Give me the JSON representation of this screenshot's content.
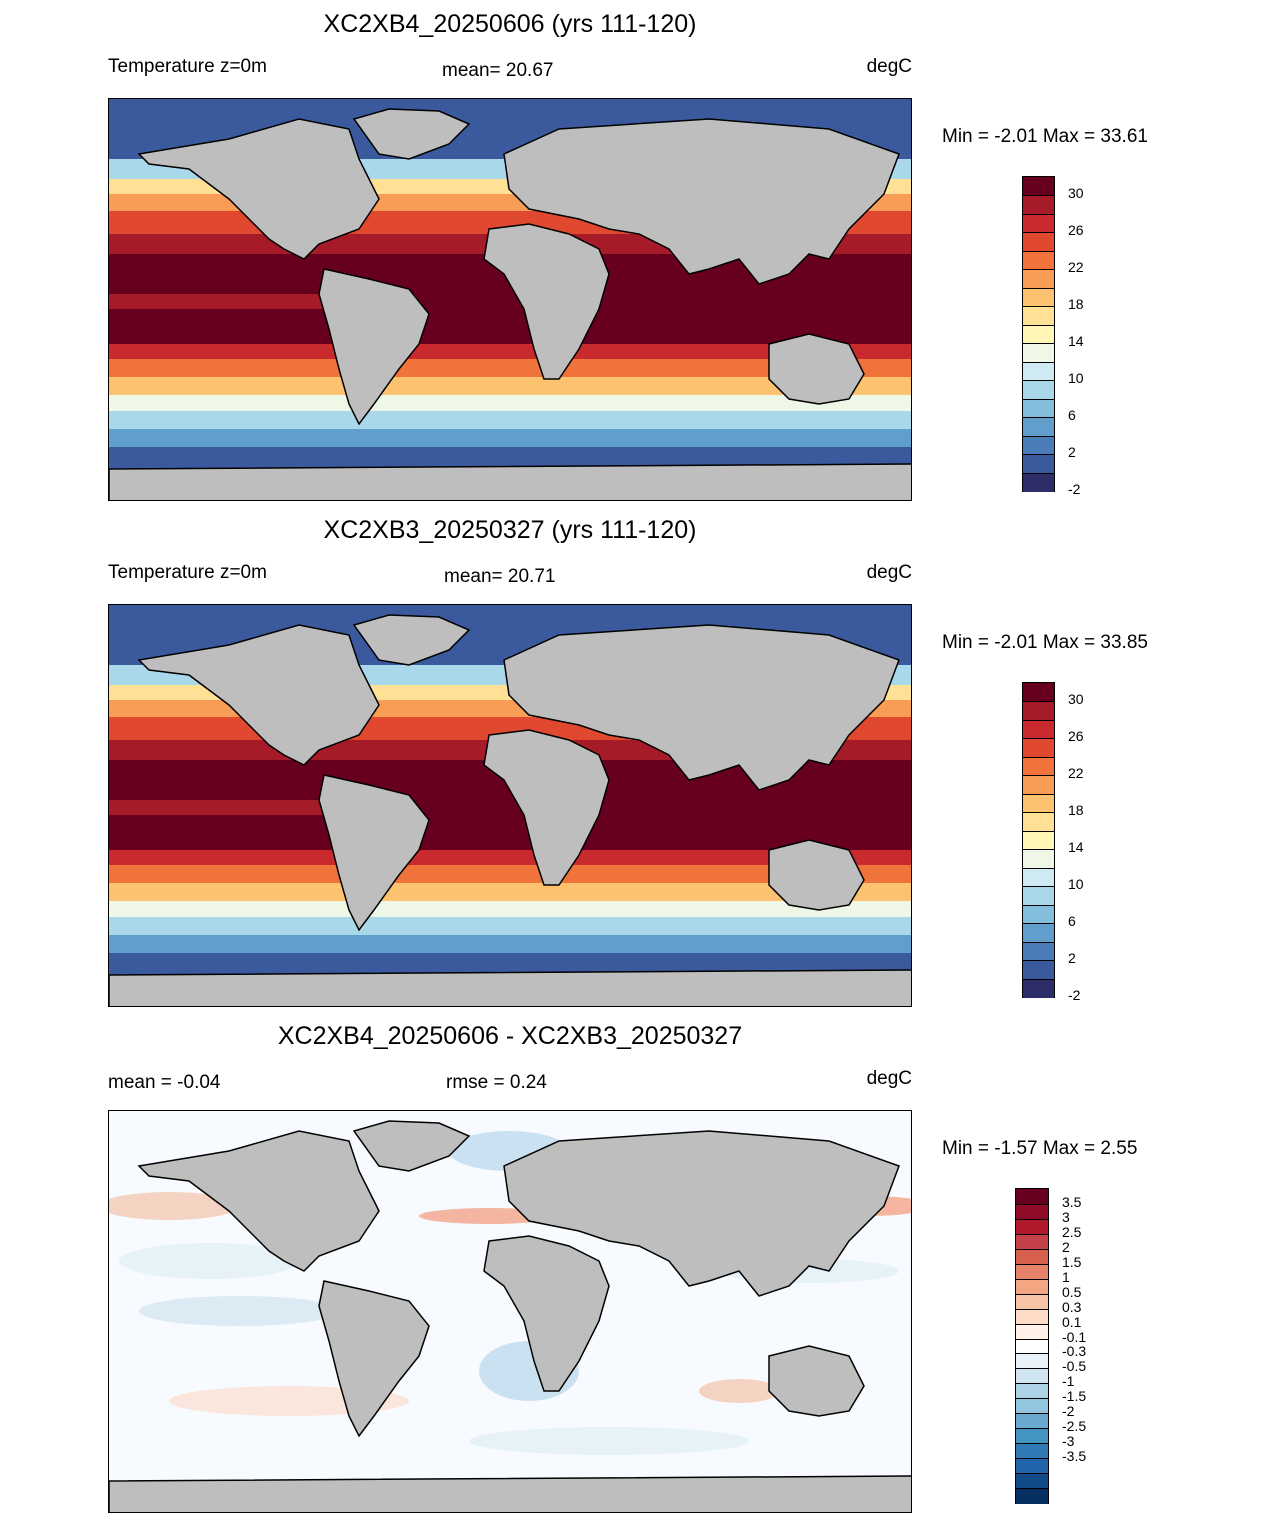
{
  "panels": [
    {
      "title": "XC2XB4_20250606 (yrs 111-120)",
      "left_label": "Temperature z=0m",
      "center_label": "mean=  20.67",
      "units": "degC",
      "minmax": "Min =  -2.01 Max =  33.61",
      "colorbar": {
        "labels": [
          "30",
          "26",
          "22",
          "18",
          "14",
          "10",
          "6",
          "2",
          "-2"
        ],
        "colors": [
          "#67001f",
          "#a51b28",
          "#c92a2d",
          "#e0482f",
          "#f0733c",
          "#f99c56",
          "#fdc26f",
          "#fee195",
          "#fff6b8",
          "#eff8e6",
          "#cfeaf2",
          "#a8d8ea",
          "#83bedc",
          "#609fcc",
          "#4a7cb8",
          "#3b5a9e",
          "#2d2e69"
        ]
      }
    },
    {
      "title": "XC2XB3_20250327 (yrs 111-120)",
      "left_label": "Temperature z=0m",
      "center_label": "mean=  20.71",
      "units": "degC",
      "minmax": "Min =  -2.01 Max =  33.85",
      "colorbar": {
        "labels": [
          "30",
          "26",
          "22",
          "18",
          "14",
          "10",
          "6",
          "2",
          "-2"
        ],
        "colors": [
          "#67001f",
          "#a51b28",
          "#c92a2d",
          "#e0482f",
          "#f0733c",
          "#f99c56",
          "#fdc26f",
          "#fee195",
          "#fff6b8",
          "#eff8e6",
          "#cfeaf2",
          "#a8d8ea",
          "#83bedc",
          "#609fcc",
          "#4a7cb8",
          "#3b5a9e",
          "#2d2e69"
        ]
      }
    },
    {
      "title": "XC2XB4_20250606 - XC2XB3_20250327",
      "left_label": "mean =  -0.04",
      "center_label": "rmse =   0.24",
      "units": "degC",
      "minmax": "Min =  -1.57 Max =   2.55",
      "colorbar": {
        "labels": [
          "3.5",
          "3",
          "2.5",
          "2",
          "1.5",
          "1",
          "0.5",
          "0.3",
          "0.1",
          "-0.1",
          "-0.3",
          "-0.5",
          "-1",
          "-1.5",
          "-2",
          "-2.5",
          "-3",
          "-3.5"
        ],
        "colors": [
          "#67001f",
          "#8e0c25",
          "#b2182b",
          "#c4414a",
          "#d6604d",
          "#e58268",
          "#f4a582",
          "#f8c4a8",
          "#fddbc7",
          "#fff0e8",
          "#ffffff",
          "#e8f2f8",
          "#d1e5f0",
          "#aed3e7",
          "#92c5de",
          "#6aa9cf",
          "#4393c3",
          "#2f79b5",
          "#2166ac",
          "#114a88",
          "#053061"
        ]
      }
    }
  ]
}
